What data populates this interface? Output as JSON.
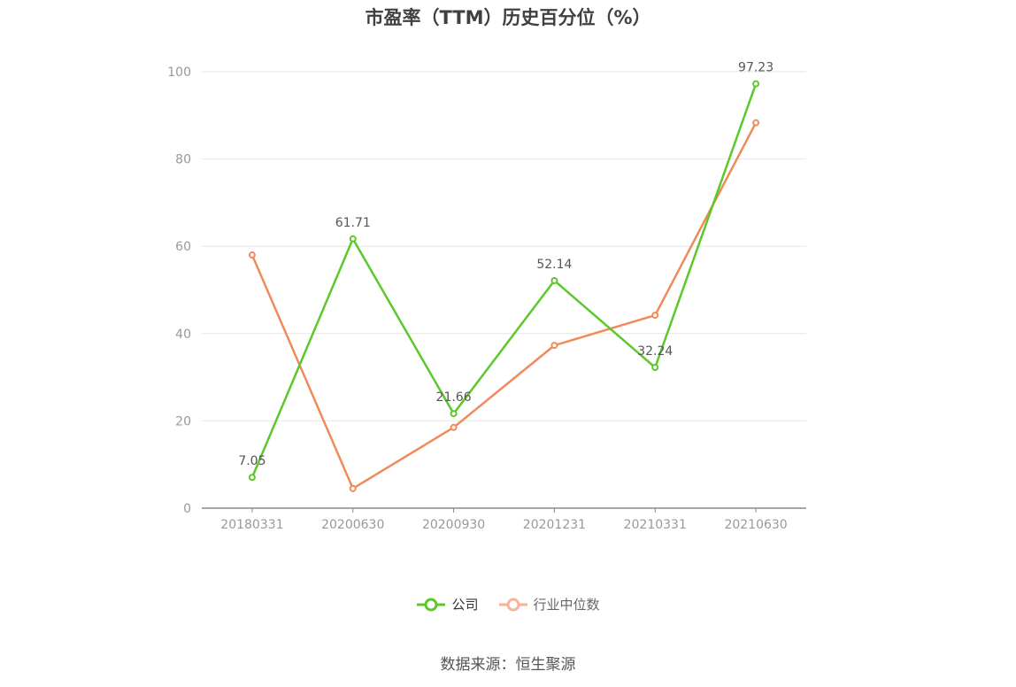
{
  "title": "市盈率（TTM）历史百分位（%）",
  "source": "数据来源：恒生聚源",
  "colors": {
    "company": "#5cc82a",
    "industry": "#f08a5a",
    "industry_legend": "#f5b49a",
    "grid": "#e6e6e6",
    "axis": "#888888"
  },
  "legend": {
    "company": "公司",
    "industry": "行业中位数"
  },
  "chart_data": {
    "type": "line",
    "title": "市盈率（TTM）历史百分位（%）",
    "categories": [
      "20180331",
      "20200630",
      "20200930",
      "20201231",
      "20210331",
      "20210630"
    ],
    "ylim": [
      0,
      100
    ],
    "yticks": [
      0,
      20,
      40,
      60,
      80,
      100
    ],
    "grid": true,
    "legend_position": "bottom",
    "series": [
      {
        "name": "公司",
        "values": [
          7.05,
          61.71,
          21.66,
          52.14,
          32.24,
          97.23
        ],
        "labels": [
          "7.05",
          "61.71",
          "21.66",
          "52.14",
          "32.24",
          "97.23"
        ]
      },
      {
        "name": "行业中位数",
        "values": [
          58.0,
          4.5,
          18.5,
          37.3,
          44.2,
          88.3
        ]
      }
    ]
  }
}
